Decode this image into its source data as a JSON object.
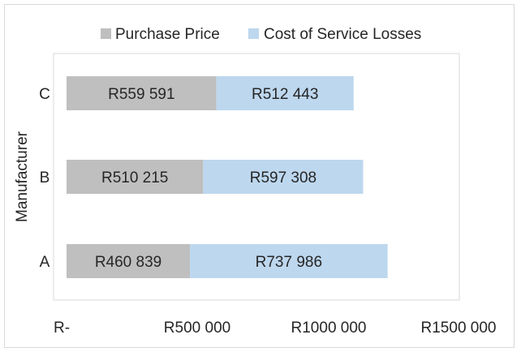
{
  "chart_data": {
    "type": "bar",
    "orientation": "horizontal",
    "stacked": true,
    "title": "",
    "ylabel": "Manufacturer",
    "xlabel": "",
    "categories": [
      "A",
      "B",
      "C"
    ],
    "series": [
      {
        "name": "Purchase Price",
        "color": "#bfbfbf",
        "values": [
          460839,
          510215,
          559591
        ],
        "labels": [
          "R460 839",
          "R510 215",
          "R559 591"
        ]
      },
      {
        "name": "Cost of Service Losses",
        "color": "#bdd7ee",
        "values": [
          737986,
          597308,
          512443
        ],
        "labels": [
          "R737 986",
          "R597 308",
          "R512 443"
        ]
      }
    ],
    "xlim": [
      0,
      1500000
    ],
    "xticks": [
      0,
      500000,
      1000000,
      1500000
    ],
    "xtick_labels": [
      "R-",
      "R500 000",
      "R1000 000",
      "R1500 000"
    ],
    "grid": false,
    "legend_position": "top"
  }
}
